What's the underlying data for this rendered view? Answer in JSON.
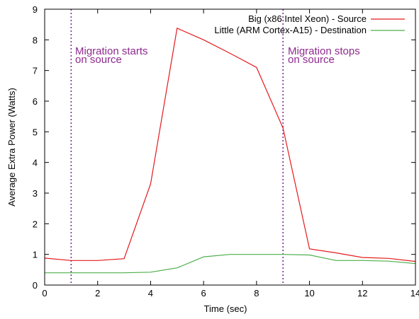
{
  "chart_data": {
    "type": "line",
    "title": "",
    "xlabel": "Time (sec)",
    "ylabel": "Average Extra Power (Watts)",
    "xlim": [
      0,
      14
    ],
    "ylim": [
      0,
      9
    ],
    "xticks": [
      0,
      2,
      4,
      6,
      8,
      10,
      12,
      14
    ],
    "yticks": [
      0,
      1,
      2,
      3,
      4,
      5,
      6,
      7,
      8,
      9
    ],
    "grid": false,
    "legend_position": "top-right",
    "series": [
      {
        "name": "Big (x86 Intel Xeon) - Source",
        "color": "#e41a1c",
        "x": [
          0,
          1,
          2,
          3,
          4,
          5,
          6,
          7,
          8,
          9,
          10,
          11,
          12,
          13,
          14
        ],
        "y": [
          0.88,
          0.8,
          0.8,
          0.86,
          3.3,
          8.38,
          8.0,
          7.56,
          7.1,
          5.12,
          1.18,
          1.05,
          0.9,
          0.87,
          0.77
        ]
      },
      {
        "name": "Little (ARM Cortex-A15) - Destination",
        "color": "#4daf4a",
        "x": [
          0,
          1,
          2,
          3,
          4,
          5,
          6,
          7,
          8,
          9,
          10,
          11,
          12,
          13,
          14
        ],
        "y": [
          0.4,
          0.4,
          0.4,
          0.4,
          0.42,
          0.56,
          0.92,
          1.0,
          1.0,
          1.0,
          0.98,
          0.8,
          0.8,
          0.78,
          0.7
        ]
      }
    ],
    "vlines": [
      {
        "x": 1,
        "color": "#7b2d9b"
      },
      {
        "x": 9,
        "color": "#7b2d9b"
      }
    ],
    "annotations": [
      {
        "lines": [
          "Migration starts",
          "on source"
        ],
        "color": "#8e2a8e"
      },
      {
        "lines": [
          "Migration stops",
          "on source"
        ],
        "color": "#8e2a8e"
      }
    ]
  }
}
